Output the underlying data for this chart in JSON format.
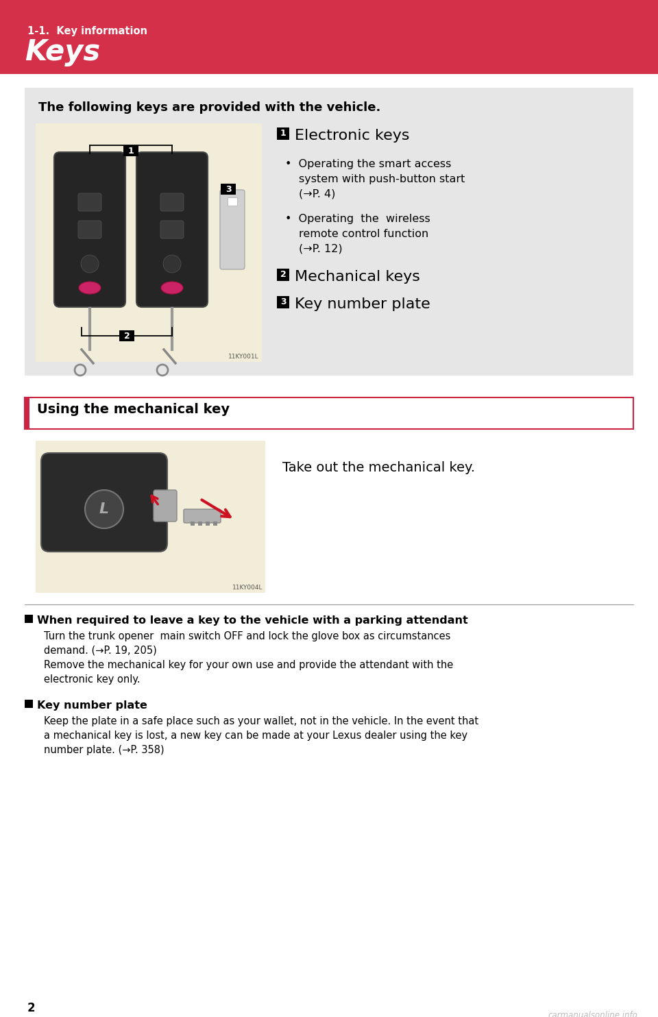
{
  "bg_color": "#ffffff",
  "header_bg": "#d4304a",
  "header_subtext": "1-1.  Key information",
  "header_title": "Keys",
  "section1_bg": "#e6e6e6",
  "section1_title": "The following keys are provided with the vehicle.",
  "bullet1_line1": "•  Operating the smart access",
  "bullet1_line2": "system with push-button start",
  "bullet1_line3": "(→P. 4)",
  "bullet2_line1": "•  Operating  the  wireless",
  "bullet2_line2": "remote control function",
  "bullet2_line3": "(→P. 12)",
  "mech_keys": "Mechanical keys",
  "key_num_plate": "Key number plate",
  "section2_title": "Using the mechanical key",
  "section2_desc": "Take out the mechanical key.",
  "note1_header": "When required to leave a key to the vehicle with a parking attendant",
  "note1_body1": "Turn the trunk opener  main switch OFF and lock the glove box as circumstances",
  "note1_body2": "demand. (→P. 19, 205)",
  "note1_body3": "Remove the mechanical key for your own use and provide the attendant with the",
  "note1_body4": "electronic key only.",
  "note2_header": "Key number plate",
  "note2_body1": "Keep the plate in a safe place such as your wallet, not in the vehicle. In the event that",
  "note2_body2": "a mechanical key is lost, a new key can be made at your Lexus dealer using the key",
  "note2_body3": "number plate. (→P. 358)",
  "page_number": "2",
  "watermark": "carmanualsonline.info",
  "image1_bg": "#f2edd8",
  "image2_bg": "#f2edd8"
}
